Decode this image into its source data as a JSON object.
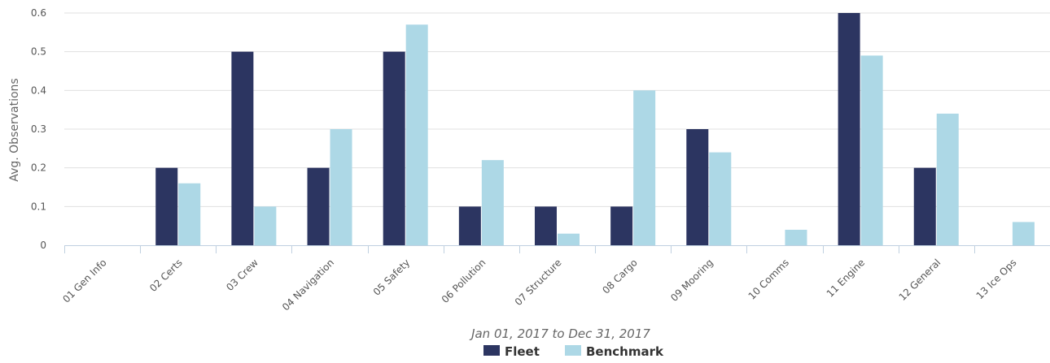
{
  "chart_data": {
    "type": "bar",
    "categories": [
      "01 Gen Info",
      "02 Certs",
      "03 Crew",
      "04 Navigation",
      "05 Safety",
      "06 Pollution",
      "07 Structure",
      "08 Cargo",
      "09 Mooring",
      "10 Comms",
      "11 Engine",
      "12 General",
      "13 Ice Ops"
    ],
    "series": [
      {
        "name": "Fleet",
        "color": "#2c3561",
        "values": [
          0,
          0.2,
          0.5,
          0.2,
          0.5,
          0.1,
          0.1,
          0.1,
          0.3,
          0,
          0.6,
          0.2,
          0
        ]
      },
      {
        "name": "Benchmark",
        "color": "#add8e6",
        "values": [
          0,
          0.16,
          0.1,
          0.3,
          0.57,
          0.22,
          0.03,
          0.4,
          0.24,
          0.04,
          0.49,
          0.34,
          0.06
        ]
      }
    ],
    "title": "",
    "xlabel": "Jan 01, 2017 to Dec 31, 2017",
    "ylabel": "Avg. Observations",
    "ylim": [
      0,
      0.6
    ],
    "yticks": [
      "0",
      "0.1",
      "0.2",
      "0.3",
      "0.4",
      "0.5",
      "0.6"
    ],
    "grid": "horizontal",
    "legend_position": "bottom-center"
  }
}
